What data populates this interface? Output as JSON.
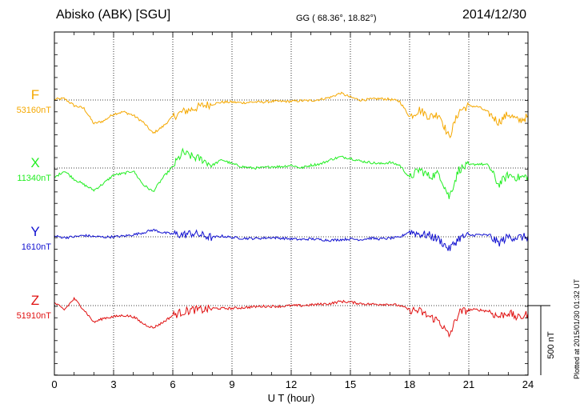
{
  "header": {
    "station": "Abisko (ABK)  [SGU]",
    "coords": "GG ( 68.36°,  18.82°)",
    "date": "2014/12/30"
  },
  "footer": {
    "plotted": "Plotted at 2015/01/30 01:32 UT"
  },
  "chart_data": {
    "type": "line",
    "title": "Abisko (ABK)  [SGU]",
    "xlabel": "U T (hour)",
    "ylabel": "",
    "xlim": [
      0,
      24
    ],
    "x_ticks": [
      0,
      3,
      6,
      9,
      12,
      15,
      18,
      21,
      24
    ],
    "x_tick_labels": [
      "0",
      "3",
      "6",
      "9",
      "12",
      "15",
      "18",
      "21",
      "24"
    ],
    "grid": true,
    "scale_bar": {
      "label": "500 nT",
      "value_nT": 500
    },
    "series": [
      {
        "name": "F",
        "baseline_label": "53160nT",
        "baseline_nT": 53160,
        "color": "#f5a800",
        "x": [
          0,
          0.5,
          1,
          1.5,
          2,
          2.5,
          3,
          3.5,
          4,
          4.5,
          5,
          5.5,
          6,
          6.5,
          7,
          7.5,
          8,
          8.5,
          9,
          9.5,
          10,
          10.5,
          11,
          11.5,
          12,
          12.5,
          13,
          13.5,
          14,
          14.5,
          15,
          15.5,
          16,
          16.5,
          17,
          17.5,
          18,
          18.5,
          19,
          19.5,
          20,
          20.5,
          21,
          21.5,
          22,
          22.5,
          23,
          23.5,
          24
        ],
        "values": [
          53165,
          53170,
          53120,
          53100,
          52990,
          53010,
          53060,
          53075,
          53050,
          53000,
          52920,
          52970,
          53040,
          53075,
          53095,
          53120,
          53130,
          53145,
          53145,
          53140,
          53145,
          53145,
          53150,
          53150,
          53150,
          53155,
          53155,
          53165,
          53180,
          53210,
          53180,
          53160,
          53165,
          53170,
          53165,
          53150,
          53040,
          53090,
          53040,
          53060,
          52890,
          53080,
          53120,
          53110,
          53070,
          53000,
          53060,
          53010,
          53040
        ]
      },
      {
        "name": "X",
        "baseline_label": "11340nT",
        "baseline_nT": 11340,
        "color": "#22ee22",
        "x": [
          0,
          0.5,
          1,
          1.5,
          2,
          2.5,
          3,
          3.5,
          4,
          4.5,
          5,
          5.5,
          6,
          6.5,
          7,
          7.5,
          8,
          8.5,
          9,
          9.5,
          10,
          10.5,
          11,
          11.5,
          12,
          12.5,
          13,
          13.5,
          14,
          14.5,
          15,
          15.5,
          16,
          16.5,
          17,
          17.5,
          18,
          18.5,
          19,
          19.5,
          20,
          20.5,
          21,
          21.5,
          22,
          22.5,
          23,
          23.5,
          24
        ],
        "values": [
          11270,
          11320,
          11260,
          11220,
          11180,
          11230,
          11290,
          11300,
          11320,
          11220,
          11170,
          11270,
          11350,
          11450,
          11420,
          11400,
          11360,
          11400,
          11370,
          11350,
          11340,
          11340,
          11350,
          11350,
          11360,
          11340,
          11360,
          11370,
          11400,
          11420,
          11410,
          11390,
          11380,
          11370,
          11380,
          11360,
          11270,
          11330,
          11280,
          11300,
          11130,
          11330,
          11360,
          11370,
          11360,
          11220,
          11290,
          11270,
          11280
        ]
      },
      {
        "name": "Y",
        "baseline_label": "1610nT",
        "baseline_nT": 1610,
        "color": "#1010d0",
        "x": [
          0,
          0.5,
          1,
          1.5,
          2,
          2.5,
          3,
          3.5,
          4,
          4.5,
          5,
          5.5,
          6,
          6.5,
          7,
          7.5,
          8,
          8.5,
          9,
          9.5,
          10,
          10.5,
          11,
          11.5,
          12,
          12.5,
          13,
          13.5,
          14,
          14.5,
          15,
          15.5,
          16,
          16.5,
          17,
          17.5,
          18,
          18.5,
          19,
          19.5,
          20,
          20.5,
          21,
          21.5,
          22,
          22.5,
          23,
          23.5,
          24
        ],
        "values": [
          1615,
          1605,
          1610,
          1620,
          1612,
          1608,
          1610,
          1615,
          1625,
          1640,
          1660,
          1640,
          1630,
          1625,
          1635,
          1620,
          1605,
          1615,
          1605,
          1600,
          1598,
          1600,
          1605,
          1600,
          1595,
          1590,
          1595,
          1590,
          1585,
          1590,
          1595,
          1590,
          1600,
          1595,
          1600,
          1605,
          1650,
          1630,
          1620,
          1590,
          1520,
          1600,
          1620,
          1625,
          1620,
          1565,
          1610,
          1605,
          1610
        ]
      },
      {
        "name": "Z",
        "baseline_label": "51910nT",
        "baseline_nT": 51910,
        "color": "#e01010",
        "x": [
          0,
          0.5,
          1,
          1.5,
          2,
          2.5,
          3,
          3.5,
          4,
          4.5,
          5,
          5.5,
          6,
          6.5,
          7,
          7.5,
          8,
          8.5,
          9,
          9.5,
          10,
          10.5,
          11,
          11.5,
          12,
          12.5,
          13,
          13.5,
          14,
          14.5,
          15,
          15.5,
          16,
          16.5,
          17,
          17.5,
          18,
          18.5,
          19,
          19.5,
          20,
          20.5,
          21,
          21.5,
          22,
          22.5,
          23,
          23.5,
          24
        ],
        "values": [
          51930,
          51880,
          51960,
          51880,
          51790,
          51820,
          51830,
          51840,
          51830,
          51780,
          51750,
          51790,
          51840,
          51865,
          51880,
          51880,
          51890,
          51890,
          51890,
          51895,
          51900,
          51905,
          51905,
          51905,
          51910,
          51910,
          51915,
          51920,
          51925,
          51940,
          51935,
          51925,
          51920,
          51920,
          51920,
          51910,
          51880,
          51870,
          51830,
          51800,
          51690,
          51860,
          51880,
          51880,
          51870,
          51830,
          51860,
          51820,
          51850
        ]
      }
    ]
  }
}
